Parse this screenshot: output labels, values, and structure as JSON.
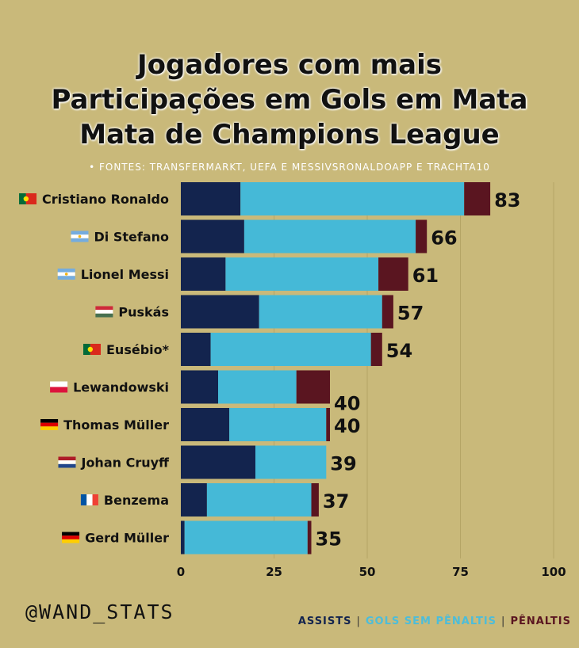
{
  "title_lines": [
    "Jogadores com mais",
    "Participações em Gols em Mata",
    "Mata de Champions League"
  ],
  "subtitle": "• FONTES: TRANSFERMARKT, UEFA E MESSIVSRONALDOAPP E TRACHTA10",
  "handle": "@WAND_STATS",
  "legend": {
    "assists": "ASSISTS",
    "separator": "|",
    "gols": "GOLS SEM PÊNALTIS",
    "penaltis": "PÊNALTIS"
  },
  "colors": {
    "assists": "#13244e",
    "gols_sem_penaltis": "#45b9d7",
    "penaltis": "#5a1520",
    "background": "#c9b97a"
  },
  "chart_data": {
    "type": "bar",
    "orientation": "horizontal",
    "stacked": true,
    "categories": [
      "Cristiano Ronaldo",
      "Di Stefano",
      "Lionel Messi",
      "Puskás",
      "Eusébio*",
      "Lewandowski",
      "Thomas Müller",
      "Johan Cruyff",
      "Benzema",
      "Gerd Müller"
    ],
    "flags": [
      "portugal",
      "argentina",
      "argentina",
      "hungary",
      "portugal",
      "poland",
      "germany",
      "netherlands",
      "france",
      "germany"
    ],
    "series": [
      {
        "name": "ASSISTS",
        "values": [
          16,
          17,
          12,
          21,
          8,
          10,
          13,
          20,
          7,
          1
        ]
      },
      {
        "name": "GOLS SEM PÊNALTIS",
        "values": [
          60,
          46,
          41,
          33,
          43,
          21,
          26,
          19,
          28,
          33
        ]
      },
      {
        "name": "PÊNALTIS",
        "values": [
          7,
          3,
          8,
          3,
          3,
          9,
          1,
          0,
          2,
          1
        ]
      }
    ],
    "totals": [
      "83",
      "66",
      "61",
      "57",
      "54",
      "40",
      "40",
      "39",
      "37",
      "35"
    ],
    "xlim": [
      0,
      100
    ],
    "xticks": [
      "0",
      "25",
      "50",
      "75",
      "100"
    ],
    "grid": true
  }
}
